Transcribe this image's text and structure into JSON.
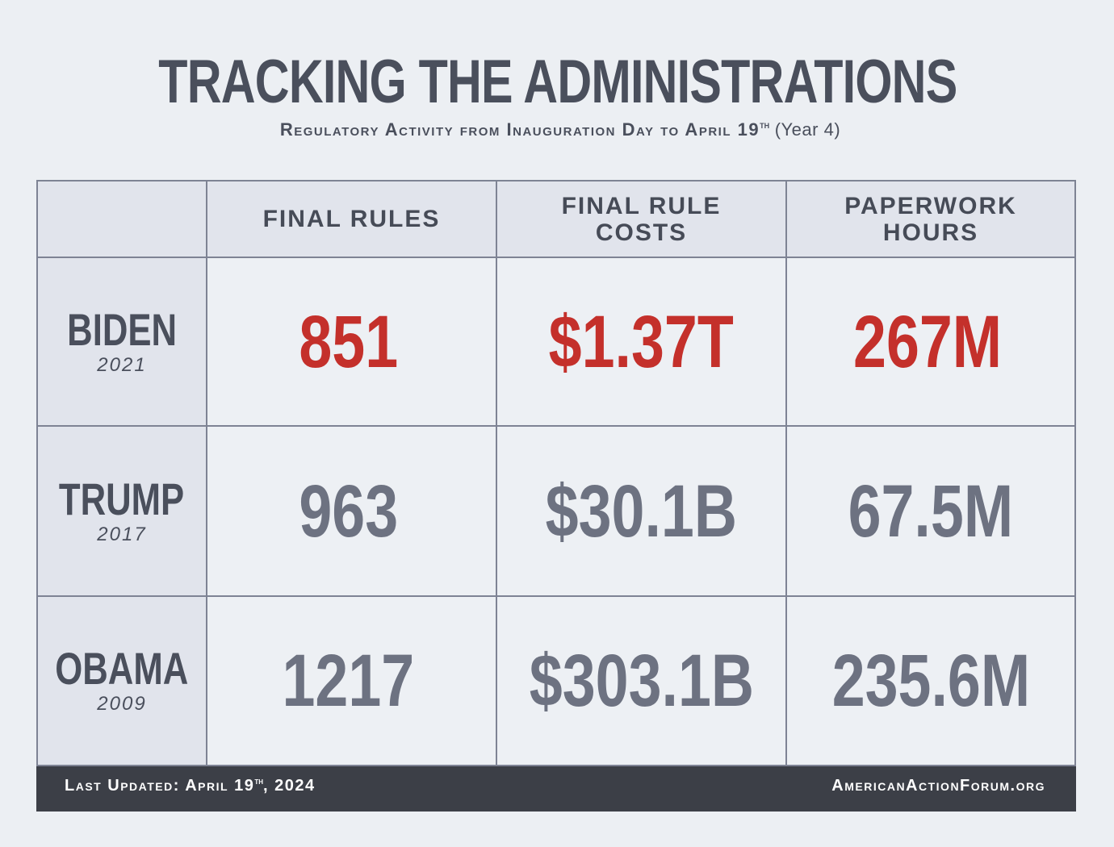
{
  "title": "TRACKING THE ADMINISTRATIONS",
  "subtitle": {
    "main": "Regulatory Activity from Inauguration Day to April 19",
    "superscript": "th",
    "tail": " (Year 4)"
  },
  "table": {
    "headers": [
      "",
      "FINAL RULES",
      "FINAL RULE COSTS",
      "PAPERWORK HOURS"
    ],
    "rows": [
      {
        "name": "BIDEN",
        "year": "2021",
        "final_rules": "851",
        "final_rule_costs": "$1.37T",
        "paperwork_hours": "267M",
        "highlight": true
      },
      {
        "name": "TRUMP",
        "year": "2017",
        "final_rules": "963",
        "final_rule_costs": "$30.1B",
        "paperwork_hours": "67.5M",
        "highlight": false
      },
      {
        "name": "OBAMA",
        "year": "2009",
        "final_rules": "1217",
        "final_rule_costs": "$303.1B",
        "paperwork_hours": "235.6M",
        "highlight": false
      }
    ]
  },
  "footer": {
    "updated_prefix": "Last Updated: April 19",
    "updated_sup": "th",
    "updated_suffix": ", 2024",
    "site": "AmericanActionForum.org"
  },
  "colors": {
    "highlight": "#c4302b",
    "normal_value": "#6d7281",
    "text_dark": "#4a4f5c",
    "background": "#eceff3",
    "footer_bg": "#3c3f47"
  }
}
